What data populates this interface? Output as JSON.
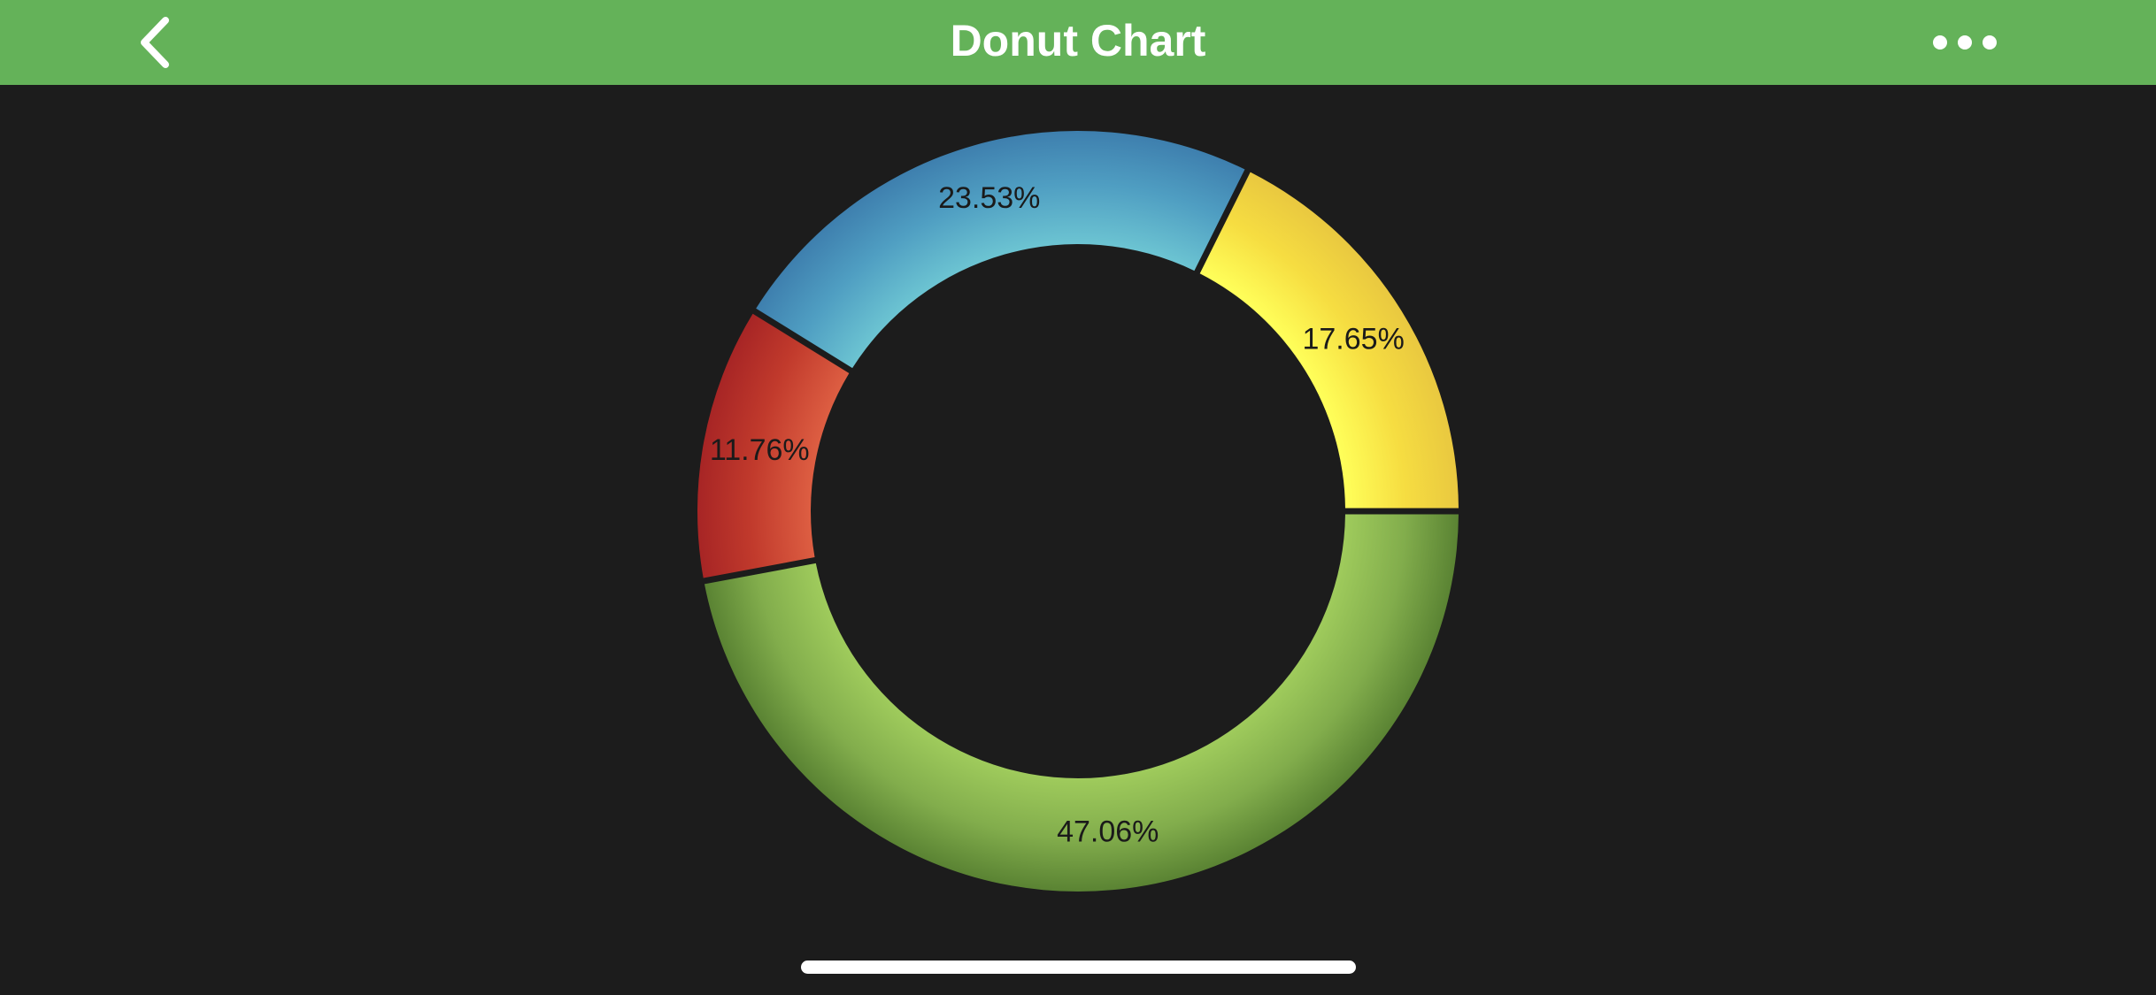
{
  "nav": {
    "title": "Donut Chart",
    "back_icon": "chevron-left-icon",
    "more_icon": "more-horizontal-icon"
  },
  "colors": {
    "nav_background": "#64b259",
    "page_background": "#1c1c1c",
    "label_text": "#1a1a1a"
  },
  "chart_data": {
    "type": "pie",
    "variant": "donut",
    "slices": [
      {
        "label": "17.65%",
        "value": 17.65,
        "color": "#f6dd41",
        "color_light": "#ffff5a",
        "color_dark": "#e9c840"
      },
      {
        "label": "23.53%",
        "value": 23.53,
        "color": "#4f9ec2",
        "color_light": "#6cc4d2",
        "color_dark": "#3e7fae"
      },
      {
        "label": "11.76%",
        "value": 11.76,
        "color": "#c13a2c",
        "color_light": "#dd5e42",
        "color_dark": "#a72525"
      },
      {
        "label": "47.06%",
        "value": 47.06,
        "color": "#82ad4c",
        "color_light": "#9fcb5c",
        "color_dark": "#5a8333"
      }
    ],
    "start": "right (3 o'clock), counter-clockwise",
    "legend": "none"
  }
}
